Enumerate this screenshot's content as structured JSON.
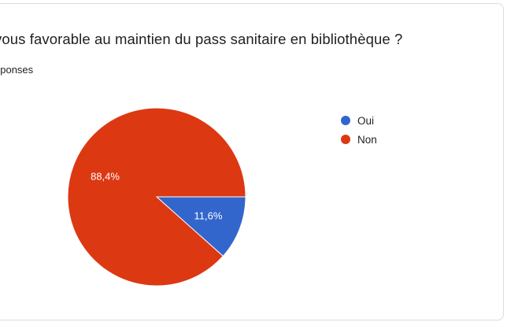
{
  "question": {
    "title": "vous favorable au maintien du pass sanitaire en bibliothèque ?",
    "responses_label": "éponses"
  },
  "chart_data": {
    "type": "pie",
    "title": "vous favorable au maintien du pass sanitaire en bibliothèque ?",
    "legend_position": "right",
    "slices": [
      {
        "label": "Oui",
        "value": 11.6,
        "display": "11,6%",
        "color": "#3366cc"
      },
      {
        "label": "Non",
        "value": 88.4,
        "display": "88,4%",
        "color": "#dc3912"
      }
    ]
  }
}
